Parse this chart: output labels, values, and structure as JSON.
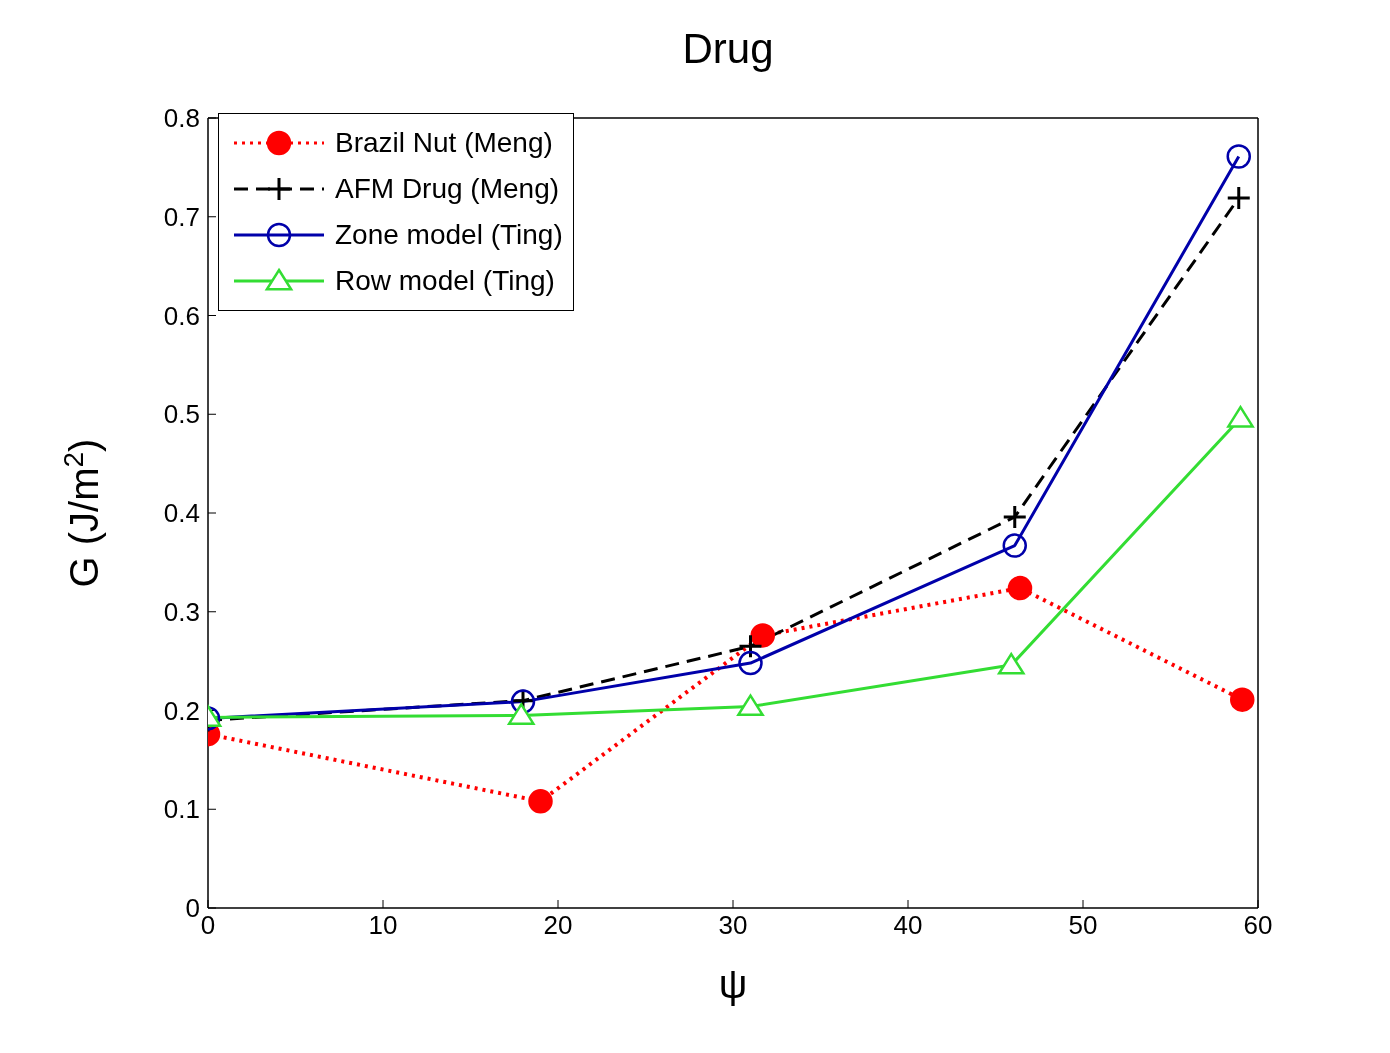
{
  "chart_data": {
    "type": "line",
    "title": "Drug",
    "xlabel": "ψ",
    "ylabel": "G (J/m$^{2}$)",
    "xlim": [
      0,
      60
    ],
    "xticks": [
      0,
      10,
      20,
      30,
      40,
      50,
      60
    ],
    "ylim": [
      0,
      0.8
    ],
    "yticks": [
      0,
      0.1,
      0.2,
      0.3,
      0.4,
      0.5,
      0.6,
      0.7,
      0.8
    ],
    "grid": false,
    "legend": "top left",
    "series": [
      {
        "name": "Brazil Nut (Meng)",
        "color": "#ff0000",
        "marker": "circle",
        "line_style": "dotted",
        "x": [
          0,
          19,
          31.7,
          46.4,
          59.1
        ],
        "values": [
          0.176,
          0.108,
          0.276,
          0.324,
          0.211
        ]
      },
      {
        "name": "AFM Drug (Meng)",
        "color": "#000000",
        "marker": "cross",
        "line_style": "dashed",
        "x": [
          0,
          18,
          31,
          46.1,
          58.9
        ],
        "values": [
          0.19,
          0.21,
          0.265,
          0.396,
          0.719
        ]
      },
      {
        "name": "Zone model (Ting)",
        "color": "#0000aa",
        "marker": "circle",
        "line_style": "solid",
        "x": [
          0,
          18,
          31,
          46.1,
          58.9
        ],
        "values": [
          0.192,
          0.209,
          0.248,
          0.367,
          0.761
        ]
      },
      {
        "name": "Row model (Ting)",
        "color": "#33dd33",
        "marker": "triangle",
        "line_style": "solid",
        "x": [
          0,
          17.9,
          31,
          45.9,
          59
        ],
        "values": [
          0.193,
          0.195,
          0.204,
          0.246,
          0.496
        ]
      }
    ]
  }
}
